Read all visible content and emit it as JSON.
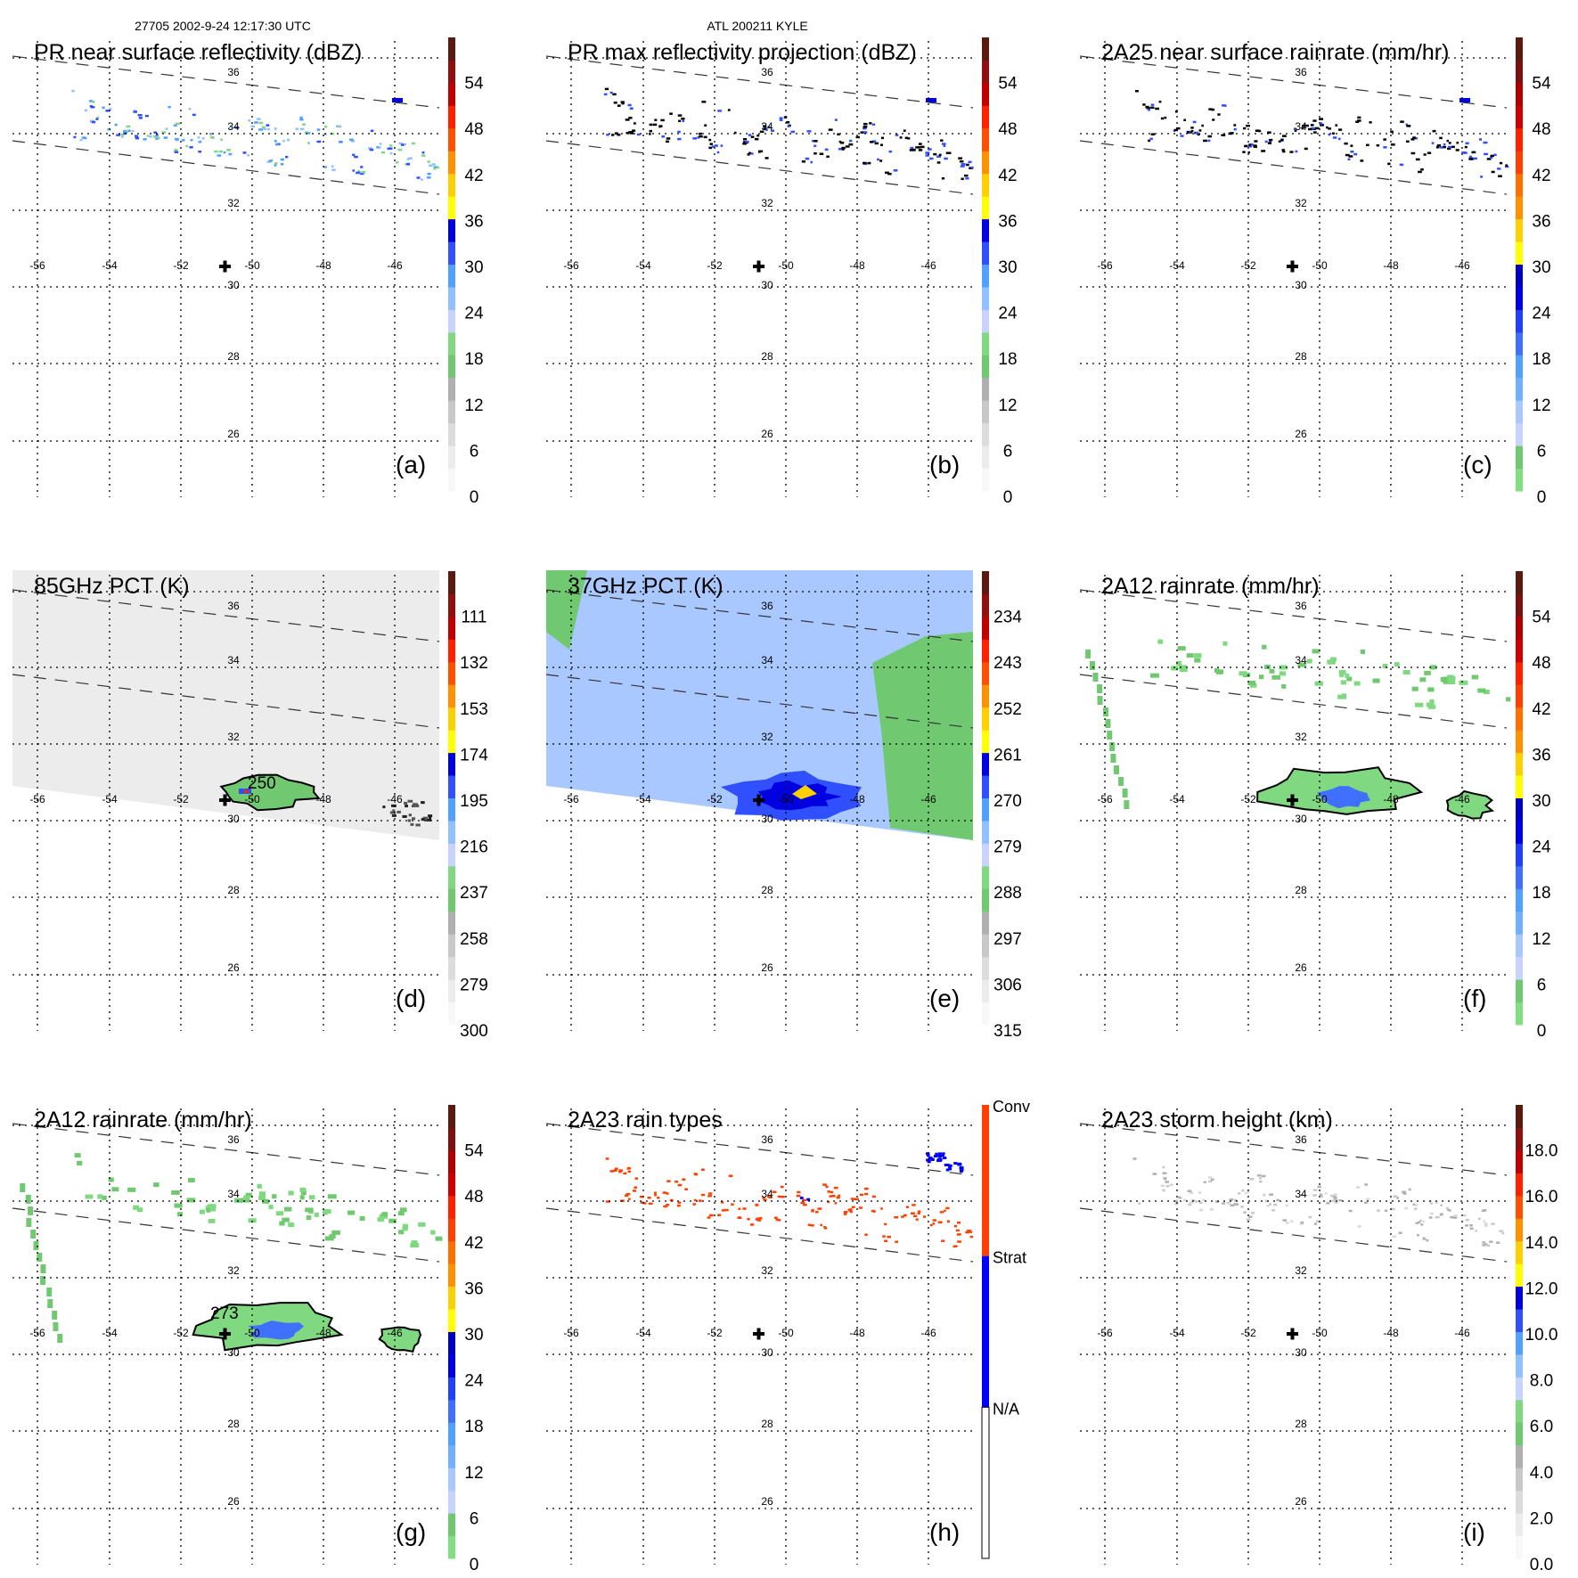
{
  "header": {
    "orbit_time": "27705 2002-9-24 12:17:30 UTC",
    "storm": "ATL 200211 KYLE"
  },
  "chart_data": [
    {
      "type": "heatmap",
      "id": "a",
      "title": "PR near surface reflectivity (dBZ)",
      "letter": "(a)",
      "colormap": "dbz",
      "colorbar_ticks": [
        "0",
        "6",
        "12",
        "18",
        "24",
        "30",
        "36",
        "42",
        "48",
        "54"
      ],
      "field": "sparse"
    },
    {
      "type": "heatmap",
      "id": "b",
      "title": "PR max reflectivity projection (dBZ)",
      "letter": "(b)",
      "colormap": "dbz",
      "colorbar_ticks": [
        "0",
        "6",
        "12",
        "18",
        "24",
        "30",
        "36",
        "42",
        "48",
        "54"
      ],
      "field": "sparse-contour"
    },
    {
      "type": "heatmap",
      "id": "c",
      "title": "2A25 near surface rainrate (mm/hr)",
      "letter": "(c)",
      "colormap": "rain",
      "colorbar_ticks": [
        "0",
        "6",
        "12",
        "18",
        "24",
        "30",
        "36",
        "42",
        "48",
        "54"
      ],
      "field": "sparse-contour"
    },
    {
      "type": "heatmap",
      "id": "d",
      "title": "85GHz PCT (K)",
      "letter": "(d)",
      "colormap": "dbz",
      "colorbar_ticks": [
        "300",
        "279",
        "258",
        "237",
        "216",
        "195",
        "174",
        "153",
        "132",
        "111"
      ],
      "field": "pct85",
      "contour_label": "250"
    },
    {
      "type": "heatmap",
      "id": "e",
      "title": "37GHz PCT (K)",
      "letter": "(e)",
      "colormap": "dbz",
      "colorbar_ticks": [
        "315",
        "306",
        "297",
        "288",
        "279",
        "270",
        "261",
        "252",
        "243",
        "234"
      ],
      "field": "pct37"
    },
    {
      "type": "heatmap",
      "id": "f",
      "title": "2A12 rainrate (mm/hr)",
      "letter": "(f)",
      "colormap": "rain",
      "colorbar_ticks": [
        "0",
        "6",
        "12",
        "18",
        "24",
        "30",
        "36",
        "42",
        "48",
        "54"
      ],
      "field": "rain12"
    },
    {
      "type": "heatmap",
      "id": "g",
      "title": "2A12 rainrate (mm/hr)",
      "letter": "(g)",
      "colormap": "rain",
      "colorbar_ticks": [
        "0",
        "6",
        "12",
        "18",
        "24",
        "30",
        "36",
        "42",
        "48",
        "54"
      ],
      "field": "rain12g",
      "contour_label": "273"
    },
    {
      "type": "heatmap",
      "id": "h",
      "title": "2A23 rain types",
      "letter": "(h)",
      "colormap": "types",
      "colorbar_ticks": [
        "Conv",
        "Strat",
        "N/A"
      ],
      "field": "types"
    },
    {
      "type": "heatmap",
      "id": "i",
      "title": "2A23 storm height (km)",
      "letter": "(i)",
      "colormap": "dbz",
      "colorbar_ticks": [
        "0.0",
        "2.0",
        "4.0",
        "6.0",
        "8.0",
        "10.0",
        "12.0",
        "14.0",
        "16.0",
        "18.0"
      ],
      "field": "height"
    }
  ],
  "axes": {
    "lon_ticks": [
      "-56",
      "-54",
      "-52",
      "-50",
      "-48",
      "-46"
    ],
    "lat_ticks": [
      "36",
      "34",
      "32",
      "30",
      "28",
      "26"
    ],
    "storm_center": {
      "lon": -50.6,
      "lat": 30.5
    }
  },
  "colormaps": {
    "dbz": [
      "#f8f8f8",
      "#ececec",
      "#dcdcdc",
      "#c8c8c8",
      "#b0b0b0",
      "#70c870",
      "#80d880",
      "#c8d4ff",
      "#90c0ff",
      "#50a0ff",
      "#3050ff",
      "#0000e0",
      "#ffff00",
      "#ffd000",
      "#ff9000",
      "#ff5000",
      "#ff2000",
      "#c00000",
      "#901010",
      "#5a1a10"
    ],
    "rain": [
      "#80e080",
      "#70c870",
      "#c8d4ff",
      "#a8c8ff",
      "#70b0ff",
      "#50a0ff",
      "#4070ff",
      "#2040ff",
      "#0000e8",
      "#0000c8",
      "#ffff00",
      "#ffd000",
      "#ff9000",
      "#ff7000",
      "#ff4000",
      "#ff2000",
      "#d00000",
      "#b00000",
      "#7a1010",
      "#5a1a10"
    ],
    "types": [
      "#ffffff",
      "#0000ff",
      "#ff4000"
    ]
  }
}
